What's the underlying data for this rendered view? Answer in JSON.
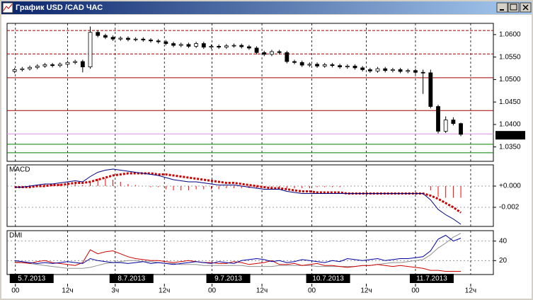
{
  "window": {
    "title": "График USD /CAD  ЧАС"
  },
  "chart_data": [
    {
      "type": "candlestick",
      "open": [
        1.0518,
        1.0522,
        1.0524,
        1.0527,
        1.053,
        1.0533,
        1.0531,
        1.0534,
        1.0538,
        1.054,
        1.0528,
        1.0605,
        1.0598,
        1.0594,
        1.059,
        1.0592,
        1.0589,
        1.059,
        1.0588,
        1.0586,
        1.0584,
        1.058,
        1.0576,
        1.0578,
        1.0574,
        1.058,
        1.0572,
        1.0574,
        1.0572,
        1.0575,
        1.0576,
        1.0573,
        1.057,
        1.056,
        1.0556,
        1.0562,
        1.056,
        1.054,
        1.0538,
        1.0532,
        1.0534,
        1.053,
        1.0533,
        1.0531,
        1.0528,
        1.053,
        1.0526,
        1.0522,
        1.0519,
        1.0524,
        1.052,
        1.0522,
        1.0518,
        1.052,
        1.0516,
        1.0515,
        1.044,
        1.0385,
        1.041,
        1.0402
      ],
      "high": [
        1.0526,
        1.0528,
        1.0531,
        1.0534,
        1.0537,
        1.0537,
        1.0538,
        1.0542,
        1.0544,
        1.0544,
        1.0618,
        1.061,
        1.0602,
        1.0598,
        1.0596,
        1.0596,
        1.0594,
        1.0594,
        1.0592,
        1.059,
        1.0588,
        1.0584,
        1.0582,
        1.0582,
        1.0584,
        1.0584,
        1.0578,
        1.0578,
        1.0579,
        1.058,
        1.058,
        1.0577,
        1.0574,
        1.0564,
        1.0566,
        1.0566,
        1.0564,
        1.0544,
        1.0542,
        1.0538,
        1.0538,
        1.0537,
        1.0537,
        1.0535,
        1.0534,
        1.0534,
        1.053,
        1.0526,
        1.0528,
        1.0528,
        1.0526,
        1.0526,
        1.0524,
        1.0524,
        1.0522,
        1.0522,
        1.0444,
        1.0418,
        1.0416,
        1.0404
      ],
      "low": [
        1.0514,
        1.0518,
        1.052,
        1.0523,
        1.0526,
        1.0527,
        1.0527,
        1.053,
        1.0534,
        1.0516,
        1.0524,
        1.0594,
        1.059,
        1.0586,
        1.0586,
        1.0585,
        1.0585,
        1.0584,
        1.0582,
        1.058,
        1.0576,
        1.0572,
        1.0572,
        1.057,
        1.057,
        1.0568,
        1.0568,
        1.0568,
        1.0568,
        1.0571,
        1.0569,
        1.0566,
        1.0556,
        1.0552,
        1.0552,
        1.0556,
        1.0536,
        1.0534,
        1.0528,
        1.0528,
        1.0526,
        1.0526,
        1.0527,
        1.0524,
        1.0524,
        1.0522,
        1.0518,
        1.0515,
        1.0515,
        1.0516,
        1.0516,
        1.0514,
        1.0514,
        1.0512,
        1.0468,
        1.0436,
        1.038,
        1.0381,
        1.0398,
        1.0374
      ],
      "close": [
        1.0522,
        1.0524,
        1.0527,
        1.053,
        1.0533,
        1.0531,
        1.0534,
        1.0538,
        1.054,
        1.0528,
        1.0605,
        1.0598,
        1.0594,
        1.059,
        1.0592,
        1.0589,
        1.059,
        1.0588,
        1.0586,
        1.0584,
        1.058,
        1.0576,
        1.0578,
        1.0574,
        1.058,
        1.0572,
        1.0574,
        1.0572,
        1.0575,
        1.0576,
        1.0573,
        1.057,
        1.056,
        1.0556,
        1.0562,
        1.056,
        1.054,
        1.0538,
        1.0532,
        1.0534,
        1.053,
        1.0533,
        1.0531,
        1.0528,
        1.053,
        1.0526,
        1.0522,
        1.0519,
        1.0524,
        1.052,
        1.0522,
        1.0518,
        1.052,
        1.0516,
        1.0515,
        1.044,
        1.0385,
        1.041,
        1.0402,
        1.0378
      ],
      "ylim": [
        1.0318,
        1.0625
      ],
      "yticks": [
        {
          "value": 1.06,
          "label": "1.0600"
        },
        {
          "value": 1.055,
          "label": "1.0550"
        },
        {
          "value": 1.05,
          "label": "1.0500"
        },
        {
          "value": 1.045,
          "label": "1.0450"
        },
        {
          "value": 1.04,
          "label": "1.0400"
        },
        {
          "value": 1.035,
          "label": "1.0350"
        }
      ],
      "levels": [
        {
          "value": 1.0609,
          "color": "#a00000",
          "style": "dashed"
        },
        {
          "value": 1.0557,
          "color": "#a00000",
          "style": "dashed"
        },
        {
          "value": 1.0504,
          "color": "#a00000",
          "style": "solid"
        },
        {
          "value": 1.0431,
          "color": "#a00000",
          "style": "solid"
        },
        {
          "value": 1.0379,
          "color": "#e090e0",
          "style": "solid"
        },
        {
          "value": 1.0356,
          "color": "#008000",
          "style": "solid"
        },
        {
          "value": 1.0337,
          "color": "#008000",
          "style": "solid"
        }
      ],
      "last_price": 1.0376
    },
    {
      "type": "line",
      "title": "MACD",
      "series": [
        {
          "color": "#ff0000",
          "style": "bar",
          "values": [
            0.0,
            0.0,
            0.0001,
            0.0001,
            0.0002,
            0.0001,
            0.0002,
            0.0002,
            0.0002,
            0.0001,
            0.0005,
            0.0007,
            0.0007,
            0.0006,
            0.0004,
            0.0002,
            0.0001,
            0.0,
            -0.0001,
            -0.0001,
            -0.0003,
            -0.0004,
            -0.0004,
            -0.0004,
            -0.0003,
            -0.0003,
            -0.0003,
            -0.0003,
            -0.0002,
            -0.0002,
            -0.0002,
            -0.0002,
            -0.0002,
            -0.0002,
            -0.0001,
            -0.0001,
            -0.0002,
            -0.0002,
            -0.0002,
            -0.0002,
            -0.0001,
            -0.0001,
            -0.0001,
            -0.0001,
            0.0,
            0.0,
            0.0,
            0.0,
            0.0,
            0.0,
            0.0,
            0.0,
            0.0,
            0.0,
            0.0,
            -0.0004,
            -0.001,
            -0.0011,
            -0.0011,
            -0.0011
          ]
        },
        {
          "color": "#cc0000",
          "style": "dotted",
          "values": [
            -0.0001,
            -0.0001,
            -0.0001,
            0.0,
            0.0,
            0.0001,
            0.0001,
            0.0002,
            0.0003,
            0.0003,
            0.0004,
            0.0006,
            0.0008,
            0.001,
            0.0011,
            0.0012,
            0.0012,
            0.0012,
            0.0012,
            0.0011,
            0.0011,
            0.001,
            0.0009,
            0.0008,
            0.0007,
            0.0006,
            0.0005,
            0.0004,
            0.0003,
            0.0003,
            0.0002,
            0.0001,
            0.0,
            -0.0001,
            -0.0002,
            -0.0002,
            -0.0003,
            -0.0004,
            -0.0005,
            -0.0005,
            -0.0006,
            -0.0006,
            -0.0006,
            -0.0006,
            -0.0007,
            -0.0007,
            -0.0007,
            -0.0007,
            -0.0007,
            -0.0007,
            -0.0007,
            -0.0007,
            -0.0007,
            -0.0007,
            -0.0007,
            -0.0009,
            -0.0012,
            -0.0016,
            -0.002,
            -0.0025
          ]
        },
        {
          "color": "#000080",
          "style": "solid",
          "values": [
            -0.0001,
            -0.0001,
            0.0,
            0.0001,
            0.0002,
            0.0002,
            0.0003,
            0.0004,
            0.0005,
            0.0004,
            0.0009,
            0.0013,
            0.0015,
            0.0016,
            0.0015,
            0.0014,
            0.0013,
            0.0012,
            0.0011,
            0.001,
            0.0008,
            0.0006,
            0.0005,
            0.0004,
            0.0004,
            0.0003,
            0.0002,
            0.0001,
            0.0001,
            0.0001,
            0.0,
            -0.0001,
            -0.0002,
            -0.0003,
            -0.0003,
            -0.0003,
            -0.0005,
            -0.0006,
            -0.0007,
            -0.0007,
            -0.0007,
            -0.0007,
            -0.0007,
            -0.0007,
            -0.0007,
            -0.0007,
            -0.0007,
            -0.0007,
            -0.0007,
            -0.0007,
            -0.0007,
            -0.0007,
            -0.0007,
            -0.0007,
            -0.0007,
            -0.0013,
            -0.0022,
            -0.0027,
            -0.0031,
            -0.0036
          ]
        }
      ],
      "ylim": [
        -0.0038,
        0.002
      ],
      "yticks": [
        {
          "value": 0,
          "label": "+0.000"
        },
        {
          "value": -0.002,
          "label": "-0.002"
        }
      ]
    },
    {
      "type": "line",
      "title": "DMI",
      "series": [
        {
          "color": "#909090",
          "style": "solid",
          "values": [
            19,
            18,
            17,
            16,
            15,
            14,
            13,
            12,
            12,
            12,
            13,
            15,
            17,
            18,
            19,
            20,
            20,
            19,
            19,
            18,
            17,
            17,
            16,
            16,
            16,
            15,
            15,
            15,
            15,
            15,
            15,
            14,
            14,
            14,
            14,
            15,
            15,
            15,
            15,
            15,
            14,
            14,
            14,
            14,
            14,
            14,
            15,
            15,
            16,
            17,
            18,
            18,
            19,
            20,
            21,
            26,
            33,
            38,
            44,
            48
          ]
        },
        {
          "color": "#cc0000",
          "style": "solid",
          "values": [
            18,
            18,
            17,
            19,
            20,
            18,
            17,
            16,
            15,
            18,
            31,
            27,
            29,
            30,
            27,
            24,
            22,
            21,
            20,
            20,
            19,
            18,
            19,
            20,
            19,
            18,
            18,
            17,
            17,
            19,
            18,
            16,
            17,
            18,
            20,
            16,
            16,
            17,
            15,
            16,
            17,
            15,
            15,
            14,
            13,
            14,
            15,
            15,
            16,
            15,
            14,
            15,
            14,
            13,
            12,
            10,
            10,
            9,
            9,
            9
          ]
        },
        {
          "color": "#0000a0",
          "style": "solid",
          "values": [
            20,
            19,
            18,
            17,
            18,
            17,
            18,
            19,
            18,
            17,
            22,
            20,
            19,
            18,
            18,
            17,
            18,
            19,
            17,
            18,
            17,
            16,
            17,
            18,
            19,
            18,
            17,
            19,
            18,
            17,
            20,
            21,
            22,
            21,
            19,
            20,
            18,
            19,
            21,
            20,
            19,
            18,
            20,
            19,
            22,
            21,
            20,
            21,
            22,
            20,
            21,
            22,
            22,
            23,
            24,
            30,
            42,
            46,
            40,
            43
          ]
        }
      ],
      "ylim": [
        5.7,
        50.7
      ],
      "yticks": [
        40,
        20
      ],
      "xlim": [
        -1,
        63.3
      ],
      "xticks": [
        {
          "value": 0.1,
          "label": "00"
        },
        {
          "value": 7.0,
          "label": "12ч"
        },
        {
          "value": 13.3,
          "label": "3ч"
        },
        {
          "value": 19.8,
          "label": "12ч"
        },
        {
          "value": 26.1,
          "label": "00"
        },
        {
          "value": 32.7,
          "label": "12ч"
        },
        {
          "value": 39.3,
          "label": "00"
        },
        {
          "value": 46.5,
          "label": "12ч"
        },
        {
          "value": 53.0,
          "label": "00"
        },
        {
          "value": 60.3,
          "label": "12ч"
        }
      ],
      "date_markers": [
        {
          "value": 0.1,
          "label": "5.7.2013"
        },
        {
          "value": 13.3,
          "label": "8.7.2013"
        },
        {
          "value": 26.1,
          "label": "9.7.2013"
        },
        {
          "value": 39.3,
          "label": "10.7.2013"
        },
        {
          "value": 53.0,
          "label": "11.7.2013"
        }
      ]
    }
  ]
}
